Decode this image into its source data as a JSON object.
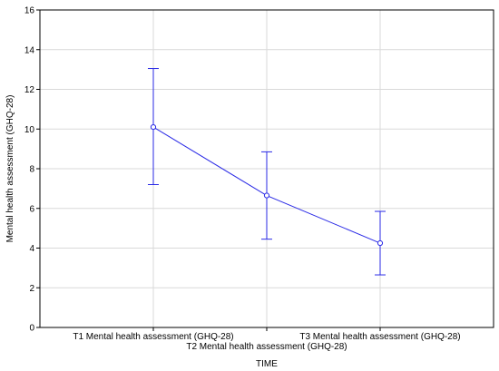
{
  "chart_data": {
    "type": "line",
    "title": "",
    "xlabel": "TIME",
    "ylabel": "Mental health assessment (GHQ-28)",
    "categories": [
      "T1 Mental health assessment (GHQ-28)",
      "T2 Mental health assessment (GHQ-28)",
      "T3 Mental health assessment (GHQ-28)"
    ],
    "ylim": [
      0,
      16
    ],
    "yticks": [
      0,
      2,
      4,
      6,
      8,
      10,
      12,
      14,
      16
    ],
    "grid": true,
    "legend": "none",
    "series": [
      {
        "values": [
          10.1,
          6.65,
          4.25
        ],
        "error_low": [
          7.2,
          4.45,
          2.65
        ],
        "error_high": [
          13.05,
          8.85,
          5.85
        ],
        "color": "#2a2ae6",
        "marker": "circle-open"
      }
    ]
  }
}
